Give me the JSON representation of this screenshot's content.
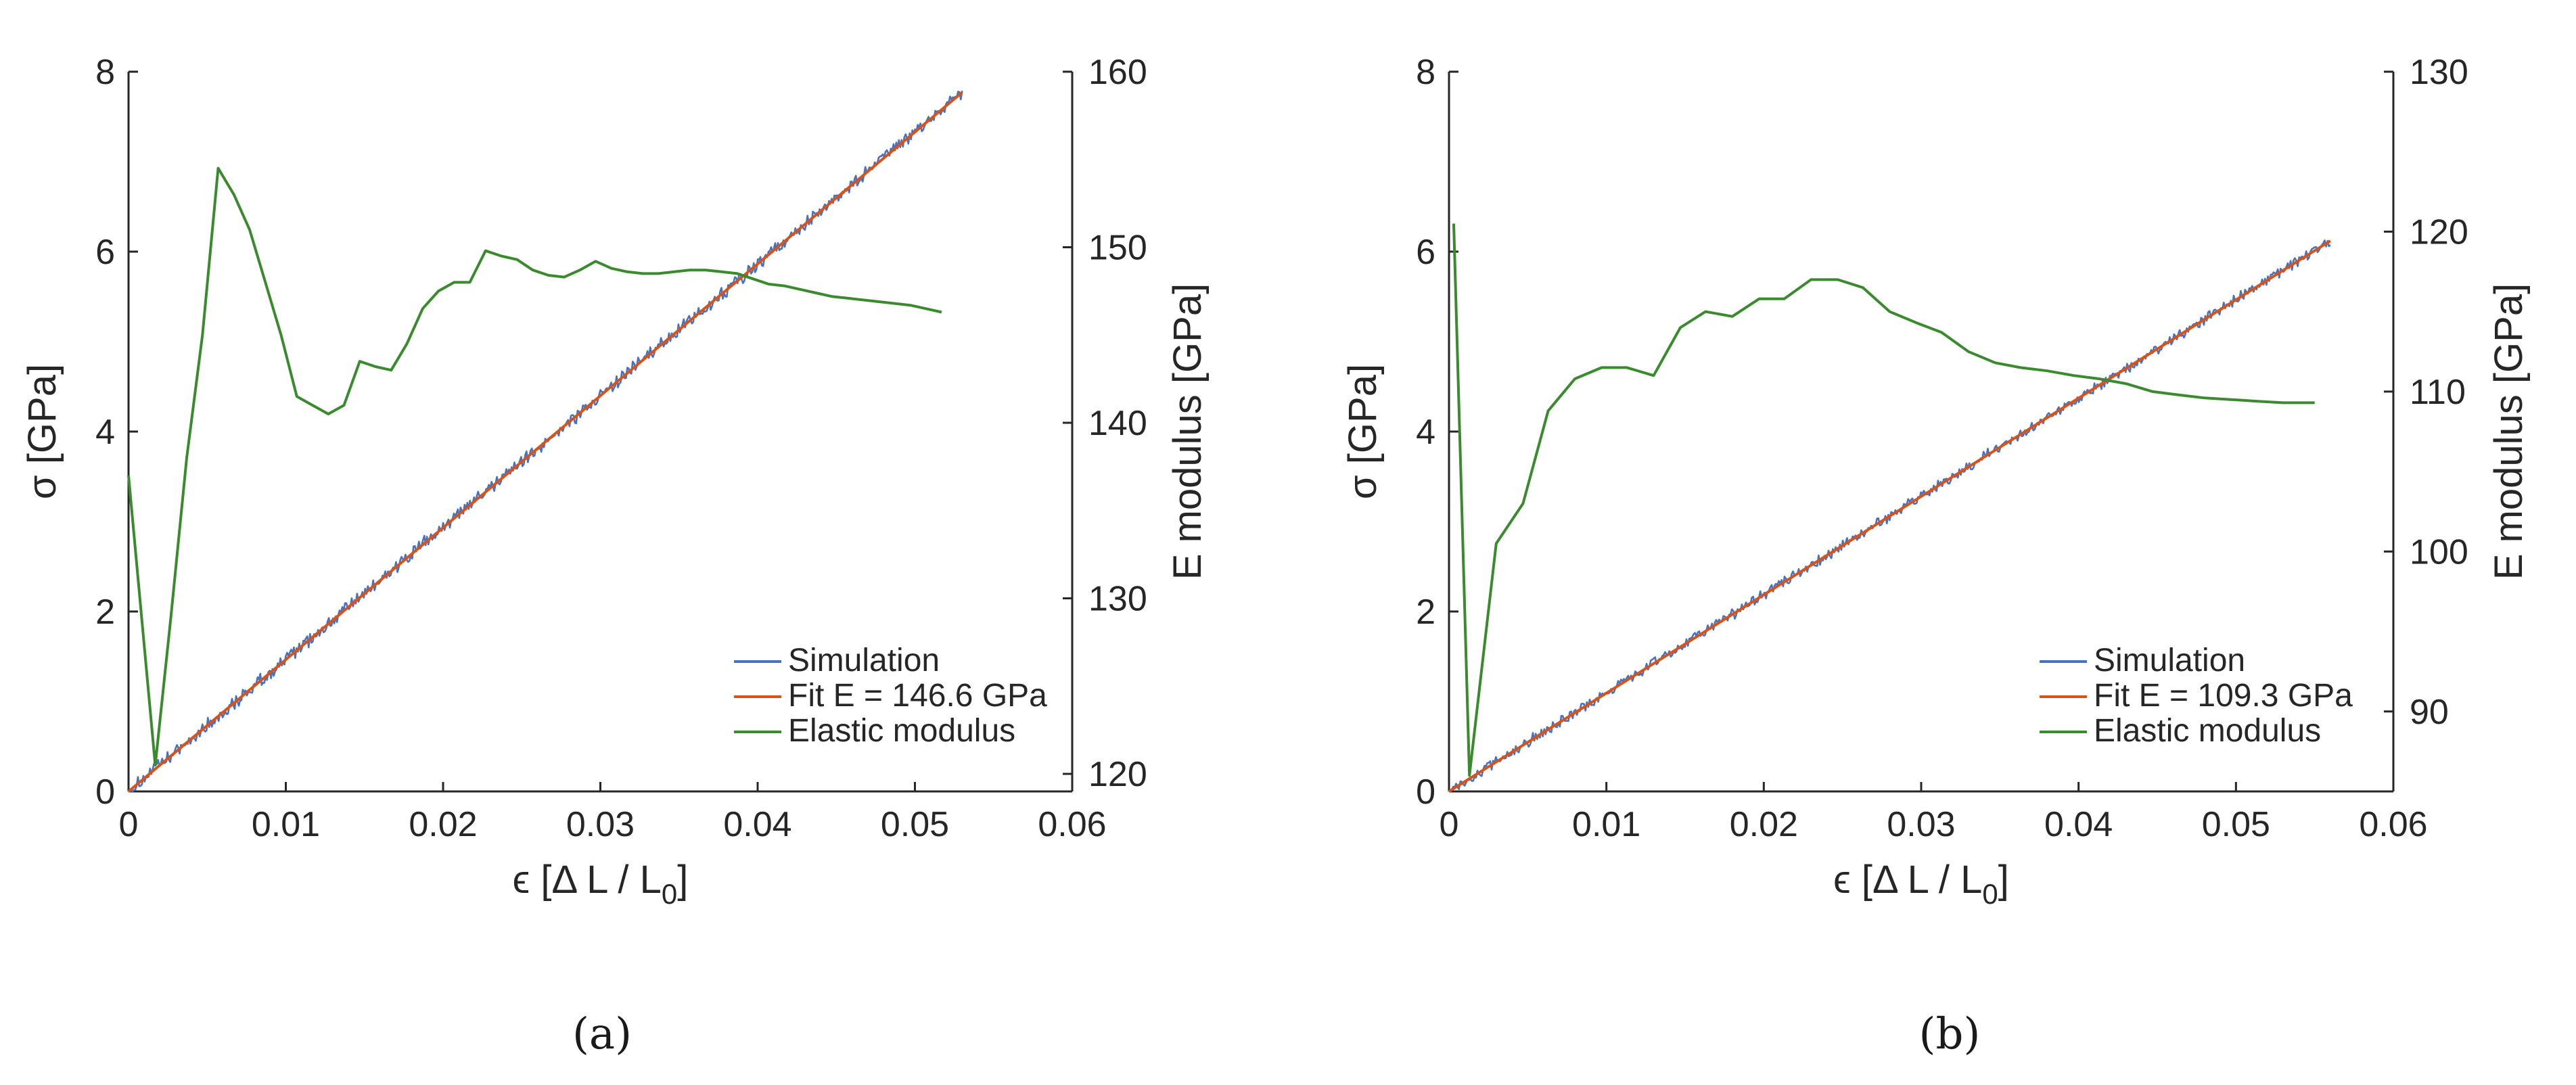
{
  "chart_data": [
    {
      "type": "line",
      "caption": "(a)",
      "xlabel_parts": [
        "ϵ [Δ L / L",
        "0",
        "]"
      ],
      "ylabel_left": "σ [GPa]",
      "ylabel_right": "E modulus [GPa]",
      "xlim": [
        0,
        0.06
      ],
      "ylim_left": [
        0,
        8
      ],
      "ylim_right": [
        119,
        160
      ],
      "x_ticks": [
        0,
        0.01,
        0.02,
        0.03,
        0.04,
        0.05,
        0.06
      ],
      "x_tick_labels": [
        "0",
        "0.01",
        "0.02",
        "0.03",
        "0.04",
        "0.05",
        "0.06"
      ],
      "y_left_ticks": [
        0,
        2,
        4,
        6,
        8
      ],
      "y_left_tick_labels": [
        "0",
        "2",
        "4",
        "6",
        "8"
      ],
      "y_right_ticks": [
        120,
        130,
        140,
        150,
        160
      ],
      "y_right_tick_labels": [
        "120",
        "130",
        "140",
        "150",
        "160"
      ],
      "series": [
        {
          "name": "Simulation",
          "axis": "left",
          "color": "#4472c4",
          "style": "noisy",
          "noise_amp": 0.09,
          "x_end": 0.053,
          "slope": 146.6
        },
        {
          "name": "Fit E = 146.6 GPa",
          "axis": "left",
          "color": "#d95319",
          "x": [
            0,
            0.053
          ],
          "y": [
            0,
            7.77
          ]
        },
        {
          "name": "Elastic modulus",
          "axis": "right",
          "color": "#3a8a2e",
          "x": [
            0.0,
            0.0017,
            0.0027,
            0.0037,
            0.0047,
            0.0057,
            0.0067,
            0.0077,
            0.0087,
            0.0097,
            0.0107,
            0.0117,
            0.0127,
            0.0137,
            0.0147,
            0.0157,
            0.0167,
            0.0177,
            0.0187,
            0.0197,
            0.0207,
            0.0217,
            0.0227,
            0.0237,
            0.0247,
            0.0257,
            0.0267,
            0.0277,
            0.0287,
            0.0297,
            0.0307,
            0.0317,
            0.0327,
            0.0337,
            0.0347,
            0.0357,
            0.0367,
            0.0377,
            0.0387,
            0.0397,
            0.0407,
            0.0417,
            0.0427,
            0.0437,
            0.0447,
            0.0457,
            0.0467,
            0.0477,
            0.0487,
            0.0497,
            0.0507,
            0.0517
          ],
          "y": [
            137,
            120.5,
            129,
            138,
            145,
            154.5,
            153,
            151,
            148,
            145,
            141.5,
            141,
            140.5,
            141,
            143.5,
            143.2,
            143,
            144.5,
            146.5,
            147.5,
            148,
            148,
            149.8,
            149.5,
            149.3,
            148.7,
            148.4,
            148.3,
            148.7,
            149.2,
            148.8,
            148.6,
            148.5,
            148.5,
            148.6,
            148.7,
            148.7,
            148.6,
            148.5,
            148.2,
            147.9,
            147.8,
            147.6,
            147.4,
            147.2,
            147.1,
            147.0,
            146.9,
            146.8,
            146.7,
            146.5,
            146.3
          ]
        }
      ]
    },
    {
      "type": "line",
      "caption": "(b)",
      "xlabel_parts": [
        "ϵ [Δ L / L",
        "0",
        "]"
      ],
      "ylabel_left": "σ [GPa]",
      "ylabel_right": "E modulus [GPa]",
      "xlim": [
        0,
        0.06
      ],
      "ylim_left": [
        0,
        8
      ],
      "ylim_right": [
        85,
        130
      ],
      "x_ticks": [
        0,
        0.01,
        0.02,
        0.03,
        0.04,
        0.05,
        0.06
      ],
      "x_tick_labels": [
        "0",
        "0.01",
        "0.02",
        "0.03",
        "0.04",
        "0.05",
        "0.06"
      ],
      "y_left_ticks": [
        0,
        2,
        4,
        6,
        8
      ],
      "y_left_tick_labels": [
        "0",
        "2",
        "4",
        "6",
        "8"
      ],
      "y_right_ticks": [
        90,
        100,
        110,
        120,
        130
      ],
      "y_right_tick_labels": [
        "90",
        "100",
        "110",
        "120",
        "130"
      ],
      "series": [
        {
          "name": "Simulation",
          "axis": "left",
          "color": "#4472c4",
          "style": "noisy",
          "noise_amp": 0.07,
          "x_end": 0.056,
          "slope": 109.3
        },
        {
          "name": "Fit E = 109.3 GPa",
          "axis": "left",
          "color": "#d95319",
          "x": [
            0,
            0.056
          ],
          "y": [
            0,
            6.12
          ]
        },
        {
          "name": "Elastic modulus",
          "axis": "right",
          "color": "#3a8a2e",
          "x": [
            0.0003,
            0.0013,
            0.003,
            0.0047,
            0.0063,
            0.008,
            0.0097,
            0.0113,
            0.013,
            0.0147,
            0.0163,
            0.018,
            0.0197,
            0.0213,
            0.023,
            0.0247,
            0.0263,
            0.028,
            0.0297,
            0.0313,
            0.033,
            0.0347,
            0.0363,
            0.038,
            0.0397,
            0.0413,
            0.043,
            0.0447,
            0.0463,
            0.048,
            0.0497,
            0.0513,
            0.053,
            0.055
          ],
          "y": [
            120.5,
            86,
            100.5,
            103,
            108.8,
            110.8,
            111.5,
            111.5,
            111,
            114,
            115,
            114.7,
            115.8,
            115.8,
            117,
            117,
            116.5,
            115,
            114.3,
            113.7,
            112.5,
            111.8,
            111.5,
            111.3,
            111,
            110.8,
            110.5,
            110.0,
            109.8,
            109.6,
            109.5,
            109.4,
            109.3,
            109.3
          ]
        }
      ]
    }
  ]
}
